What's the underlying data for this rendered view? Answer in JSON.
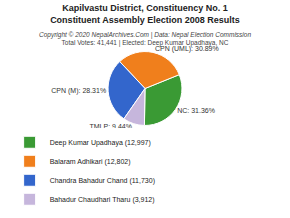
{
  "chart_data": {
    "type": "pie",
    "title": [
      "Kapilvastu District, Constituency No. 1",
      "Constituent Assembly Election 2008 Results"
    ],
    "subtitle": [
      "Copyright © 2020 NepalArchives.Com | Data: Nepal Election Commission",
      "Total Votes: 41,441 | Elected: Deep Kumar Upadhaya, NC"
    ],
    "categories": [
      "Deep Kumar Upadhaya (12,997)",
      "Balaram Adhikari (12,802)",
      "Chandra Bahadur Chand (11,730)",
      "Bahadur Chaudhari Tharu (3,912)"
    ],
    "values": [
      31.36,
      30.89,
      28.31,
      9.44
    ],
    "value_labels": [
      "NC: 31.36%",
      "CPN (UML): 30.89%",
      "CPN (M): 28.31%",
      "TMLP: 9.44%"
    ],
    "colors": [
      "#3a9a34",
      "#f07f1c",
      "#3366cc",
      "#c6b6dc"
    ],
    "data_labels": true,
    "legend": "bottom"
  }
}
